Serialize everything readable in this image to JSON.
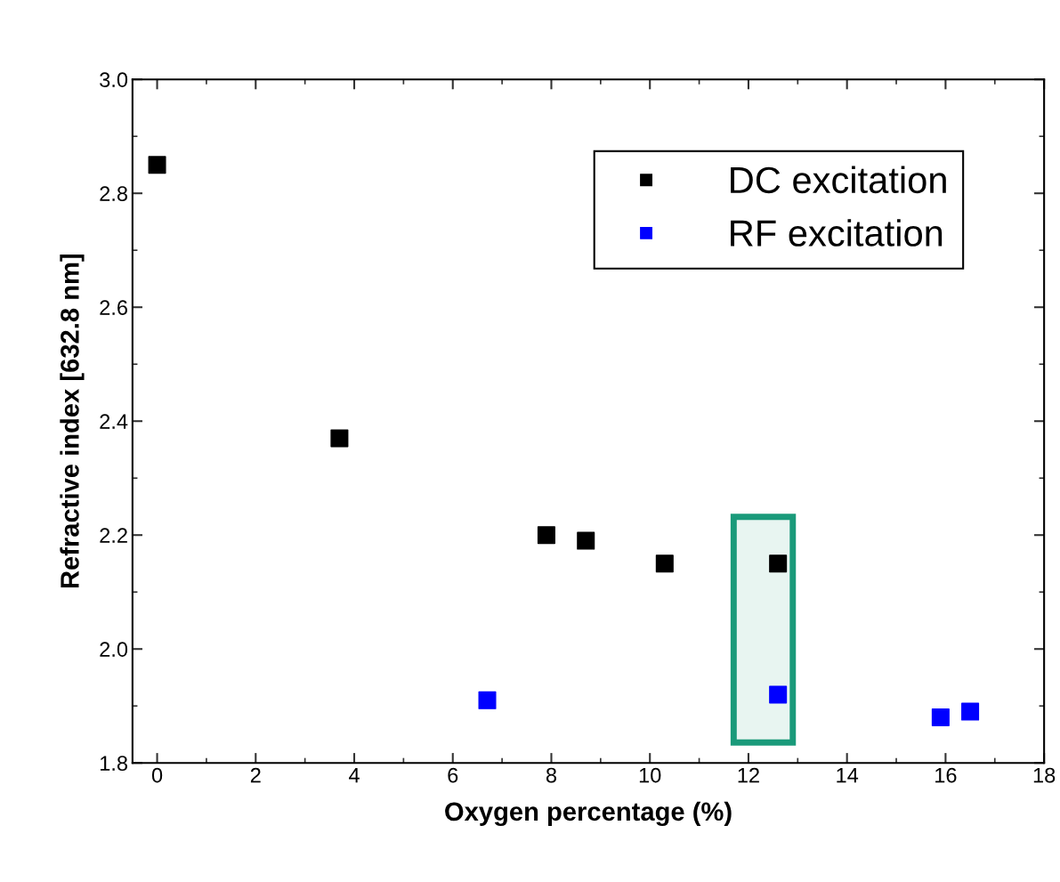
{
  "chart_data": {
    "type": "scatter",
    "xlabel": "Oxygen percentage (%)",
    "ylabel": "Refractive index [632.8 nm]",
    "xlim": [
      -0.5,
      18
    ],
    "xticks": [
      0,
      2,
      4,
      6,
      8,
      10,
      12,
      14,
      16,
      18
    ],
    "ylim": [
      1.8,
      3.0
    ],
    "yticks": [
      {
        "value": 1.8,
        "label": "1.8"
      },
      {
        "value": 2.0,
        "label": "2.0"
      },
      {
        "value": 2.2,
        "label": "2.2"
      },
      {
        "value": 2.4,
        "label": "2.4"
      },
      {
        "value": 2.6,
        "label": "2.6"
      },
      {
        "value": 2.8,
        "label": "2.8"
      },
      {
        "value": 3.0,
        "label": "3.0"
      }
    ],
    "marker": "square",
    "grid": false,
    "legend": "top right",
    "series": [
      {
        "name": "DC excitation",
        "color": "#000000",
        "x": [
          0,
          3.7,
          7.9,
          8.7,
          10.3,
          12.6
        ],
        "values": [
          2.85,
          2.37,
          2.2,
          2.19,
          2.15,
          2.15
        ]
      },
      {
        "name": "RF excitation",
        "color": "#0000ff",
        "x": [
          6.7,
          12.6,
          15.9,
          16.5
        ],
        "values": [
          1.91,
          1.92,
          1.88,
          1.89
        ]
      }
    ],
    "bands": [
      {
        "axis": "x",
        "from": 11.7,
        "to": 12.9,
        "color": "#1a9a7a"
      }
    ]
  }
}
